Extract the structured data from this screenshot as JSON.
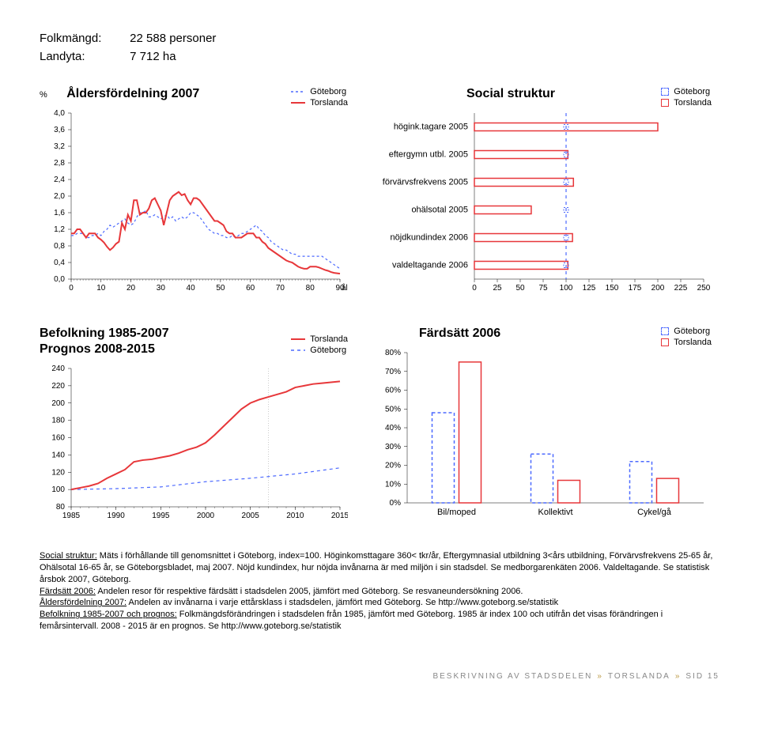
{
  "info": {
    "folkmangd_label": "Folkmängd:",
    "folkmangd_value": "22 588 personer",
    "landyta_label": "Landyta:",
    "landyta_value": "7 712 ha"
  },
  "age_chart": {
    "title": "Åldersfördelning 2007",
    "legend": {
      "a": "Göteborg",
      "b": "Torslanda"
    },
    "y_label": "%",
    "y_ticks": [
      "0,0",
      "0,4",
      "0,8",
      "1,2",
      "1,6",
      "2,0",
      "2,4",
      "2,8",
      "3,2",
      "3,6",
      "4,0"
    ],
    "y_max": 4.0,
    "x_ticks": [
      0,
      10,
      20,
      30,
      40,
      50,
      60,
      70,
      80,
      90
    ],
    "x_label": "ålder",
    "series_a_color": "#4d6aff",
    "series_b_color": "#e7373a",
    "series_a": [
      1.05,
      1.05,
      1.1,
      1.1,
      1.1,
      1.0,
      1.0,
      1.05,
      1.05,
      1.1,
      1.05,
      1.15,
      1.2,
      1.3,
      1.25,
      1.3,
      1.35,
      1.4,
      1.45,
      1.35,
      1.3,
      1.35,
      1.5,
      1.6,
      1.6,
      1.65,
      1.5,
      1.5,
      1.55,
      1.5,
      1.45,
      1.5,
      1.55,
      1.45,
      1.5,
      1.4,
      1.45,
      1.5,
      1.45,
      1.5,
      1.6,
      1.6,
      1.55,
      1.5,
      1.4,
      1.3,
      1.2,
      1.15,
      1.1,
      1.1,
      1.05,
      1.05,
      1.0,
      1.0,
      1.05,
      1.0,
      1.05,
      1.1,
      1.1,
      1.15,
      1.2,
      1.25,
      1.3,
      1.2,
      1.15,
      1.05,
      1.0,
      0.9,
      0.85,
      0.8,
      0.75,
      0.7,
      0.7,
      0.65,
      0.6,
      0.6,
      0.55,
      0.55,
      0.55,
      0.55,
      0.55,
      0.55,
      0.55,
      0.55,
      0.55,
      0.5,
      0.45,
      0.4,
      0.35,
      0.3,
      0.25
    ],
    "series_b": [
      1.1,
      1.1,
      1.2,
      1.2,
      1.1,
      1.0,
      1.1,
      1.1,
      1.1,
      1.0,
      0.95,
      0.88,
      0.78,
      0.7,
      0.76,
      0.85,
      0.9,
      1.35,
      1.2,
      1.55,
      1.4,
      1.9,
      1.9,
      1.55,
      1.6,
      1.6,
      1.7,
      1.9,
      1.95,
      1.8,
      1.65,
      1.3,
      1.6,
      1.9,
      2.0,
      2.05,
      2.1,
      2.02,
      2.05,
      1.9,
      1.8,
      1.95,
      1.95,
      1.9,
      1.8,
      1.7,
      1.6,
      1.5,
      1.4,
      1.4,
      1.35,
      1.3,
      1.15,
      1.1,
      1.1,
      1.0,
      1.0,
      1.0,
      1.05,
      1.1,
      1.1,
      1.1,
      1.0,
      1.0,
      0.9,
      0.85,
      0.75,
      0.7,
      0.65,
      0.6,
      0.55,
      0.5,
      0.45,
      0.42,
      0.4,
      0.35,
      0.3,
      0.27,
      0.25,
      0.25,
      0.3,
      0.3,
      0.3,
      0.28,
      0.25,
      0.22,
      0.2,
      0.17,
      0.15,
      0.14,
      0.13
    ]
  },
  "social_chart": {
    "title": "Social struktur",
    "legend": {
      "a": "Göteborg",
      "b": "Torslanda"
    },
    "categories": [
      "högink.tagare 2005",
      "eftergymn utbl. 2005",
      "förvärvsfrekvens 2005",
      "ohälsotal 2005",
      "nöjdkundindex 2006",
      "valdeltagande 2006"
    ],
    "x_ticks": [
      0,
      25,
      50,
      75,
      100,
      125,
      150,
      175,
      200,
      225,
      250
    ],
    "x_max": 250,
    "values_g": [
      100,
      100,
      100,
      100,
      100,
      100
    ],
    "values_t": [
      200,
      102,
      108,
      62,
      107,
      102
    ],
    "color_g": "#4d6aff",
    "color_t": "#e7373a"
  },
  "pop_chart": {
    "title1": "Befolkning 1985-2007",
    "title2": "Prognos 2008-2015",
    "legend": {
      "a": "Torslanda",
      "b": "Göteborg"
    },
    "y_ticks": [
      80,
      100,
      120,
      140,
      160,
      180,
      200,
      220,
      240
    ],
    "y_min": 80,
    "y_max": 240,
    "x_ticks": [
      1985,
      1990,
      1995,
      2000,
      2005,
      2010,
      2015
    ],
    "x_min": 1985,
    "x_max": 2015,
    "color_a": "#e7373a",
    "color_b": "#4d6aff",
    "divider_x": 2007,
    "series_a": [
      [
        1985,
        100
      ],
      [
        1986,
        102
      ],
      [
        1987,
        104
      ],
      [
        1988,
        107
      ],
      [
        1989,
        113
      ],
      [
        1990,
        118
      ],
      [
        1991,
        123
      ],
      [
        1992,
        132
      ],
      [
        1993,
        134
      ],
      [
        1994,
        135
      ],
      [
        1995,
        137
      ],
      [
        1996,
        139
      ],
      [
        1997,
        142
      ],
      [
        1998,
        146
      ],
      [
        1999,
        149
      ],
      [
        2000,
        154
      ],
      [
        2001,
        163
      ],
      [
        2002,
        173
      ],
      [
        2003,
        183
      ],
      [
        2004,
        193
      ],
      [
        2005,
        200
      ],
      [
        2006,
        204
      ],
      [
        2007,
        207
      ],
      [
        2008,
        210
      ],
      [
        2009,
        213
      ],
      [
        2010,
        218
      ],
      [
        2011,
        220
      ],
      [
        2012,
        222
      ],
      [
        2013,
        223
      ],
      [
        2014,
        224
      ],
      [
        2015,
        225
      ]
    ],
    "series_b": [
      [
        1985,
        100
      ],
      [
        1990,
        101
      ],
      [
        1995,
        103
      ],
      [
        2000,
        109
      ],
      [
        2005,
        113
      ],
      [
        2007,
        115
      ],
      [
        2010,
        118
      ],
      [
        2015,
        125
      ]
    ]
  },
  "fard_chart": {
    "title": "Färdsätt 2006",
    "legend": {
      "a": "Göteborg",
      "b": "Torslanda"
    },
    "categories": [
      "Bil/moped",
      "Kollektivt",
      "Cykel/gå"
    ],
    "y_ticks": [
      "0%",
      "10%",
      "20%",
      "30%",
      "40%",
      "50%",
      "60%",
      "70%",
      "80%"
    ],
    "y_max": 80,
    "values_g": [
      48,
      26,
      22
    ],
    "values_t": [
      75,
      12,
      13
    ],
    "color_g": "#4d6aff",
    "color_t": "#e7373a"
  },
  "body": {
    "p1a": "Social struktur:",
    "p1b": " Mäts i förhållande till genomsnittet i Göteborg, index=100. Höginkomsttagare 360< tkr/år, Eftergymnasial utbildning 3<års utbildning, Förvärvsfrekvens 25-65 år, Ohälsotal 16-65 år, se Göteborgsbladet, maj 2007. Nöjd kundindex, hur nöjda invånarna är med miljön i sin stadsdel. Se medborgarenkäten 2006. Valdeltagande. Se statistisk årsbok 2007, Göteborg.",
    "p2a": "Färdsätt 2006:",
    "p2b": " Andelen resor för respektive färdsätt i stadsdelen 2005, jämfört med Göteborg. Se resvaneundersökning 2006.",
    "p3a": "Åldersfördelning 2007:",
    "p3b": " Andelen av invånarna i varje ettårsklass i stadsdelen, jämfört med Göteborg. Se http://www.goteborg.se/statistik",
    "p4a": "Befolkning 1985-2007 och prognos:",
    "p4b": " Folkmängdsförändringen i stadsdelen från 1985, jämfört med Göteborg. 1985 är index 100 och utifrån det visas förändringen i femårsintervall. 2008 - 2015 är en prognos. Se http://www.goteborg.se/statistik"
  },
  "footer": {
    "a": "BESKRIVNING AV STADSDELEN",
    "b": "TORSLANDA",
    "c": "SID 15"
  }
}
